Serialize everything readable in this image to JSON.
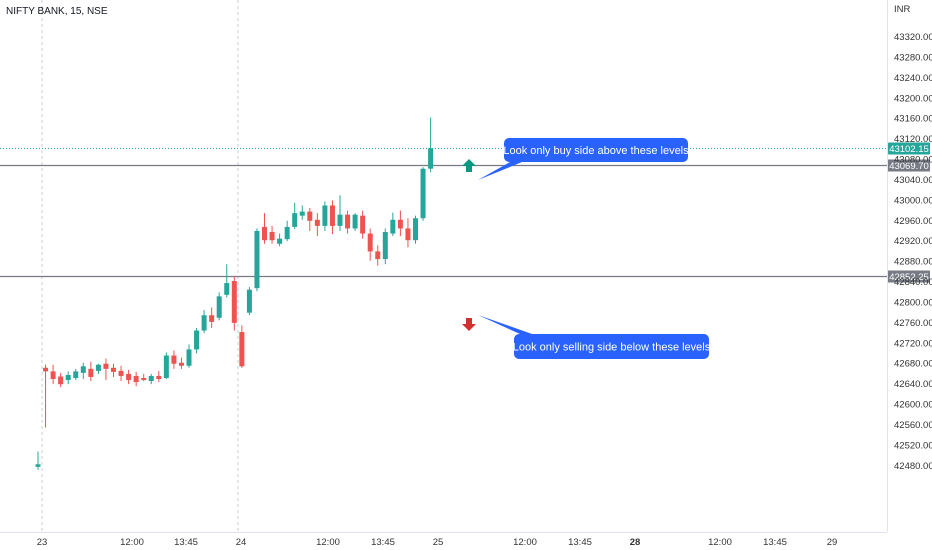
{
  "header": {
    "symbol": "NIFTY BANK, 15, NSE",
    "currency": "INR"
  },
  "colors": {
    "up": "#26a69a",
    "down": "#ef5350",
    "callout": "#2962ff",
    "current_price_label": "#26a69a",
    "level_label": "#787b86"
  },
  "chart_data": {
    "type": "candlestick",
    "title": "NIFTY BANK, 15, NSE",
    "y_axis_unit": "INR",
    "ylim": [
      42460,
      43360
    ],
    "y_ticks": [
      "43320.00",
      "43280.00",
      "43240.00",
      "43200.00",
      "43160.00",
      "43120.00",
      "43080.00",
      "43040.00",
      "43000.00",
      "42960.00",
      "42920.00",
      "42880.00",
      "42840.00",
      "42800.00",
      "42760.00",
      "42720.00",
      "42680.00",
      "42640.00",
      "42600.00",
      "42560.00",
      "42520.00",
      "42480.00"
    ],
    "x_ticks": [
      {
        "label": "23",
        "bold": false
      },
      {
        "label": "12:00",
        "bold": false
      },
      {
        "label": "13:45",
        "bold": false
      },
      {
        "label": "24",
        "bold": false
      },
      {
        "label": "12:00",
        "bold": false
      },
      {
        "label": "13:45",
        "bold": false
      },
      {
        "label": "25",
        "bold": false
      },
      {
        "label": "12:00",
        "bold": false
      },
      {
        "label": "13:45",
        "bold": false
      },
      {
        "label": "28",
        "bold": true
      },
      {
        "label": "12:00",
        "bold": false
      },
      {
        "label": "13:45",
        "bold": false
      },
      {
        "label": "29",
        "bold": false
      }
    ],
    "candles": [
      {
        "o": 42478,
        "h": 42508,
        "c": 42483,
        "l": 42472
      },
      {
        "o": 42672,
        "h": 42678,
        "c": 42665,
        "l": 42555
      },
      {
        "o": 42665,
        "h": 42678,
        "c": 42650,
        "l": 42640
      },
      {
        "o": 42655,
        "h": 42662,
        "c": 42640,
        "l": 42634
      },
      {
        "o": 42648,
        "h": 42665,
        "c": 42658,
        "l": 42640
      },
      {
        "o": 42652,
        "h": 42670,
        "c": 42665,
        "l": 42648
      },
      {
        "o": 42662,
        "h": 42682,
        "c": 42675,
        "l": 42650
      },
      {
        "o": 42670,
        "h": 42684,
        "c": 42654,
        "l": 42646
      },
      {
        "o": 42666,
        "h": 42680,
        "c": 42678,
        "l": 42660
      },
      {
        "o": 42680,
        "h": 42690,
        "c": 42670,
        "l": 42648
      },
      {
        "o": 42672,
        "h": 42680,
        "c": 42664,
        "l": 42654
      },
      {
        "o": 42666,
        "h": 42676,
        "c": 42656,
        "l": 42646
      },
      {
        "o": 42660,
        "h": 42668,
        "c": 42648,
        "l": 42640
      },
      {
        "o": 42656,
        "h": 42664,
        "c": 42644,
        "l": 42636
      },
      {
        "o": 42652,
        "h": 42660,
        "c": 42648,
        "l": 42646
      },
      {
        "o": 42646,
        "h": 42660,
        "c": 42656,
        "l": 42640
      },
      {
        "o": 42656,
        "h": 42666,
        "c": 42650,
        "l": 42644
      },
      {
        "o": 42652,
        "h": 42702,
        "c": 42696,
        "l": 42650
      },
      {
        "o": 42696,
        "h": 42706,
        "c": 42680,
        "l": 42670
      },
      {
        "o": 42682,
        "h": 42692,
        "c": 42676,
        "l": 42670
      },
      {
        "o": 42676,
        "h": 42718,
        "c": 42708,
        "l": 42672
      },
      {
        "o": 42708,
        "h": 42750,
        "c": 42745,
        "l": 42700
      },
      {
        "o": 42745,
        "h": 42785,
        "c": 42775,
        "l": 42740
      },
      {
        "o": 42775,
        "h": 42790,
        "c": 42762,
        "l": 42750
      },
      {
        "o": 42770,
        "h": 42820,
        "c": 42812,
        "l": 42765
      },
      {
        "o": 42815,
        "h": 42875,
        "c": 42838,
        "l": 42810
      },
      {
        "o": 42842,
        "h": 42850,
        "c": 42760,
        "l": 42745
      },
      {
        "o": 42742,
        "h": 42755,
        "c": 42675,
        "l": 42672
      },
      {
        "o": 42780,
        "h": 42830,
        "c": 42825,
        "l": 42775
      },
      {
        "o": 42828,
        "h": 42945,
        "c": 42940,
        "l": 42822
      },
      {
        "o": 42948,
        "h": 42975,
        "c": 42922,
        "l": 42915
      },
      {
        "o": 42938,
        "h": 42950,
        "c": 42922,
        "l": 42915
      },
      {
        "o": 42915,
        "h": 42935,
        "c": 42925,
        "l": 42910
      },
      {
        "o": 42924,
        "h": 42960,
        "c": 42948,
        "l": 42920
      },
      {
        "o": 42948,
        "h": 42995,
        "c": 42975,
        "l": 42944
      },
      {
        "o": 42970,
        "h": 42990,
        "c": 42978,
        "l": 42962
      },
      {
        "o": 42978,
        "h": 42985,
        "c": 42960,
        "l": 42940
      },
      {
        "o": 42962,
        "h": 42975,
        "c": 42950,
        "l": 42930
      },
      {
        "o": 42950,
        "h": 42998,
        "c": 42990,
        "l": 42940
      },
      {
        "o": 42990,
        "h": 43000,
        "c": 42950,
        "l": 42934
      },
      {
        "o": 42950,
        "h": 43010,
        "c": 42972,
        "l": 42940
      },
      {
        "o": 42972,
        "h": 42980,
        "c": 42945,
        "l": 42935
      },
      {
        "o": 42945,
        "h": 42975,
        "c": 42972,
        "l": 42940
      },
      {
        "o": 42970,
        "h": 42980,
        "c": 42935,
        "l": 42925
      },
      {
        "o": 42935,
        "h": 42945,
        "c": 42900,
        "l": 42882
      },
      {
        "o": 42900,
        "h": 42912,
        "c": 42885,
        "l": 42872
      },
      {
        "o": 42885,
        "h": 42945,
        "c": 42938,
        "l": 42875
      },
      {
        "o": 42935,
        "h": 42976,
        "c": 42962,
        "l": 42930
      },
      {
        "o": 42962,
        "h": 42980,
        "c": 42945,
        "l": 42930
      },
      {
        "o": 42945,
        "h": 42965,
        "c": 42922,
        "l": 42908
      },
      {
        "o": 42922,
        "h": 42970,
        "c": 42965,
        "l": 42915
      },
      {
        "o": 42965,
        "h": 43065,
        "c": 43062,
        "l": 42960
      },
      {
        "o": 43062,
        "h": 43162,
        "c": 43102,
        "l": 43055
      }
    ],
    "levels": [
      {
        "price": 43069.7,
        "label": "43069.70"
      },
      {
        "price": 42852.25,
        "label": "42852.25"
      }
    ],
    "current_price": {
      "price": 43102.15,
      "label": "43102.15"
    },
    "annotations": [
      {
        "text": "Look only buy side above these levels",
        "arrow": "up"
      },
      {
        "text": "Look only selling side below these levels",
        "arrow": "down"
      }
    ]
  }
}
